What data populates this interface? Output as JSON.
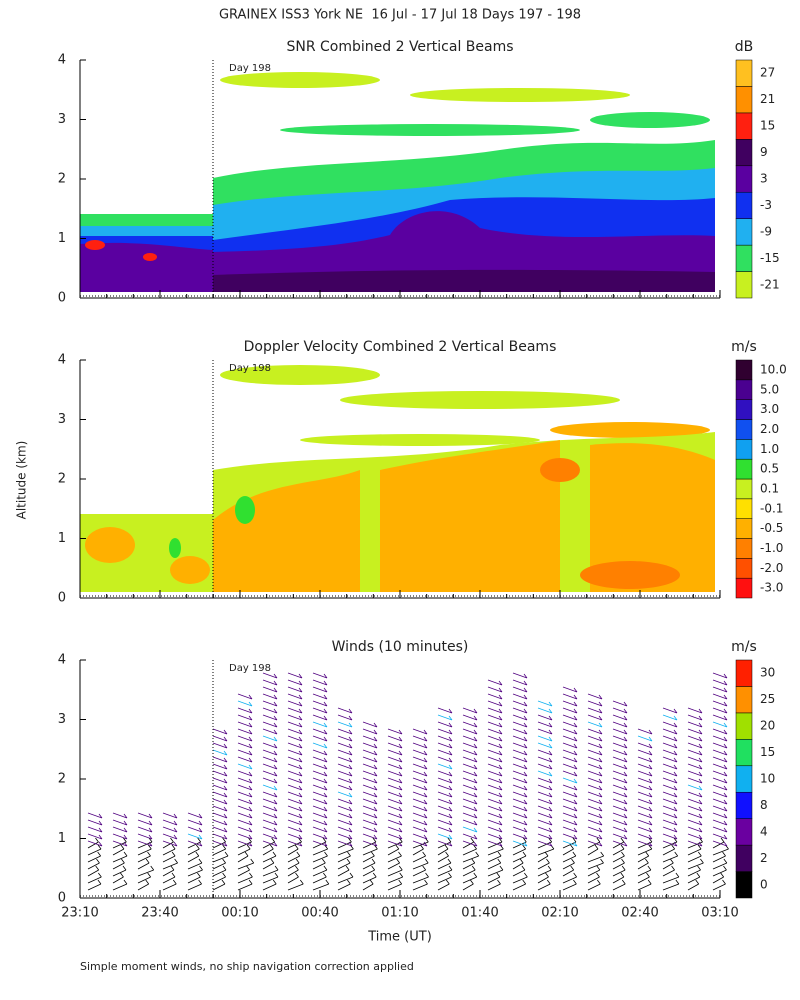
{
  "title": "GRAINEX ISS3 York NE  16 Jul - 17 Jul 18 Days 197 - 198",
  "ylabel": "Altitude (km)",
  "xlabel": "Time (UT)",
  "footnote": "Simple moment winds, no ship navigation correction applied",
  "chart_data": [
    {
      "type": "heatmap",
      "title": "SNR Combined 2 Vertical Beams",
      "annotation": "Day 198",
      "ylim": [
        0,
        4
      ],
      "yticks": [
        0,
        1,
        2,
        3,
        4
      ],
      "colorbar": {
        "label": "dB",
        "ticks": [
          -21,
          -15,
          -9,
          -3,
          3,
          9,
          15,
          21,
          27
        ],
        "colors": [
          "#c8f020",
          "#30e060",
          "#20b0f0",
          "#1030f0",
          "#5a00a0",
          "#400060",
          "#ff2010",
          "#ff9000",
          "#ffc020"
        ]
      }
    },
    {
      "type": "heatmap",
      "title": "Doppler Velocity Combined 2 Vertical Beams",
      "annotation": "Day 198",
      "ylim": [
        0,
        4
      ],
      "yticks": [
        0,
        1,
        2,
        3,
        4
      ],
      "colorbar": {
        "label": "m/s",
        "ticks": [
          {
            "value": -3,
            "label": "-3.0"
          },
          {
            "value": -2,
            "label": "-2.0"
          },
          {
            "value": -1,
            "label": "-1.0"
          },
          {
            "value": -0.5,
            "label": "-0.5"
          },
          {
            "value": -0.1,
            "label": "-0.1"
          },
          {
            "value": 0.1,
            "label": "0.1"
          },
          {
            "value": 0.5,
            "label": "0.5"
          },
          {
            "value": 1,
            "label": "1.0"
          },
          {
            "value": 2,
            "label": "2.0"
          },
          {
            "value": 3,
            "label": "3.0"
          },
          {
            "value": 5,
            "label": "5.0"
          },
          {
            "value": 10,
            "label": "10.0"
          }
        ],
        "colors": [
          "#ff1010",
          "#ff5000",
          "#ff8000",
          "#ffb000",
          "#ffe000",
          "#c8f020",
          "#30e030",
          "#10a0f0",
          "#1050f0",
          "#3010c0",
          "#4a0090",
          "#300030"
        ]
      }
    },
    {
      "type": "barbs",
      "title": "Winds (10 minutes)",
      "annotation": "Day 198",
      "ylim": [
        0,
        4
      ],
      "yticks": [
        0,
        1,
        2,
        3,
        4
      ],
      "categories": [
        "23:10",
        "23:40",
        "00:10",
        "00:40",
        "01:10",
        "01:40",
        "02:10",
        "02:40",
        "03:10"
      ],
      "colorbar": {
        "label": "m/s",
        "ticks": [
          0,
          2,
          4,
          8,
          10,
          15,
          20,
          25,
          30
        ],
        "colors": [
          "#000000",
          "#400060",
          "#6a00a0",
          "#1010ff",
          "#10b0f0",
          "#20e060",
          "#a0e000",
          "#ff9000",
          "#ff2000"
        ]
      }
    }
  ]
}
